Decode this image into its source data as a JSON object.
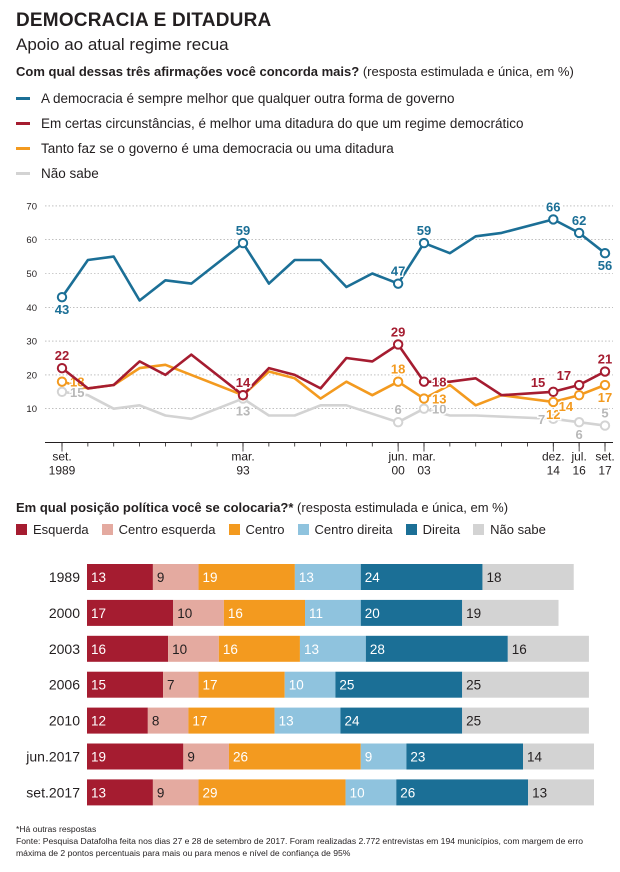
{
  "header": {
    "title": "DEMOCRACIA E DITADURA",
    "subtitle": "Apoio ao atual regime recua"
  },
  "question1": {
    "bold": "Com qual dessas três afirmações você concorda mais?",
    "note": " (resposta estimulada e única, em %)"
  },
  "question2": {
    "bold": "Em qual posição política você se colocaria?*",
    "note": " (resposta estimulada e única, em %)"
  },
  "footnote": {
    "line1": "*Há outras respostas",
    "line2": "Fonte: Pesquisa Datafolha feita nos dias 27 e 28 de setembro de 2017. Foram realizadas 2.772 entrevistas em 194 municípios, com margem de erro máxima de 2 pontos percentuais para mais ou para menos e nível de confiança de 95%"
  },
  "chart_data": [
    {
      "type": "line",
      "ylim": [
        0,
        70
      ],
      "yticks": [
        10,
        20,
        30,
        40,
        50,
        60,
        70
      ],
      "grid": true,
      "x_tick_labels": [
        {
          "index": 0,
          "top": "set.",
          "bottom": "1989"
        },
        {
          "index": 7,
          "top": "mar.",
          "bottom": "93"
        },
        {
          "index": 13,
          "top": "jun.",
          "bottom": "00"
        },
        {
          "index": 14,
          "top": "mar.",
          "bottom": "03"
        },
        {
          "index": 19,
          "top": "dez.",
          "bottom": "14"
        },
        {
          "index": 20,
          "top": "jul.",
          "bottom": "16"
        },
        {
          "index": 21,
          "top": "set.",
          "bottom": "17"
        }
      ],
      "series": [
        {
          "name": "A democracia é sempre melhor que qualquer outra forma de governo",
          "color": "#1b6f96",
          "values": [
            43,
            54,
            55,
            42,
            48,
            47,
            59,
            47,
            54,
            54,
            46,
            50,
            47,
            59,
            56,
            61,
            62,
            66,
            62,
            56
          ],
          "x_index": [
            0,
            1,
            2,
            3,
            4,
            5,
            7,
            8,
            9,
            10,
            11,
            12,
            13,
            14,
            15,
            16,
            17,
            19,
            20,
            21
          ],
          "labels": [
            {
              "i": 0,
              "text": "43",
              "pos": "below"
            },
            {
              "i": 6,
              "text": "59",
              "pos": "above"
            },
            {
              "i": 12,
              "text": "47",
              "pos": "above"
            },
            {
              "i": 13,
              "text": "59",
              "pos": "above"
            },
            {
              "i": 17,
              "text": "66",
              "pos": "above"
            },
            {
              "i": 18,
              "text": "62",
              "pos": "above"
            },
            {
              "i": 19,
              "text": "56",
              "pos": "below"
            }
          ],
          "markers": [
            0,
            6,
            12,
            13,
            17,
            18,
            19
          ]
        },
        {
          "name": "Em certas circunstâncias, é melhor uma ditadura do que um regime democrático",
          "color": "#a51c30",
          "values": [
            22,
            16,
            17,
            24,
            20,
            26,
            14,
            22,
            20,
            16,
            25,
            24,
            29,
            18,
            18,
            19,
            14,
            15,
            17,
            21
          ],
          "x_index": [
            0,
            1,
            2,
            3,
            4,
            5,
            7,
            8,
            9,
            10,
            11,
            12,
            13,
            14,
            15,
            16,
            17,
            19,
            20,
            21
          ],
          "labels": [
            {
              "i": 0,
              "text": "22",
              "pos": "above"
            },
            {
              "i": 6,
              "text": "14",
              "pos": "above"
            },
            {
              "i": 12,
              "text": "29",
              "pos": "above"
            },
            {
              "i": 13,
              "text": "18",
              "pos": "right"
            },
            {
              "i": 17,
              "text": "15",
              "pos": "aboveleft"
            },
            {
              "i": 18,
              "text": "17",
              "pos": "aboveleft"
            },
            {
              "i": 19,
              "text": "21",
              "pos": "above"
            }
          ],
          "markers": [
            0,
            6,
            12,
            13,
            17,
            18,
            19
          ]
        },
        {
          "name": "Tanto faz se o governo é uma democracia ou uma ditadura",
          "color": "#f39a1f",
          "values": [
            18,
            16,
            17,
            22,
            23,
            20,
            14,
            21,
            19,
            13,
            18,
            14,
            18,
            13,
            17,
            11,
            14,
            12,
            14,
            17
          ],
          "x_index": [
            0,
            1,
            2,
            3,
            4,
            5,
            7,
            8,
            9,
            10,
            11,
            12,
            13,
            14,
            15,
            16,
            17,
            19,
            20,
            21
          ],
          "labels": [
            {
              "i": 0,
              "text": "18",
              "pos": "right"
            },
            {
              "i": 6,
              "text": "14",
              "pos": "above"
            },
            {
              "i": 12,
              "text": "18",
              "pos": "above"
            },
            {
              "i": 13,
              "text": "13",
              "pos": "right"
            },
            {
              "i": 17,
              "text": "12",
              "pos": "below"
            },
            {
              "i": 18,
              "text": "14",
              "pos": "belowleft"
            },
            {
              "i": 19,
              "text": "17",
              "pos": "below"
            }
          ],
          "markers": [
            0,
            6,
            12,
            13,
            17,
            18,
            19
          ]
        },
        {
          "name": "Não sabe",
          "color": "#d3d3d3",
          "values": [
            15,
            14,
            10,
            11,
            8,
            7,
            13,
            8,
            8,
            11,
            11,
            6,
            10,
            8,
            8,
            7,
            6,
            5
          ],
          "x_index": [
            0,
            1,
            2,
            3,
            4,
            5,
            7,
            8,
            9,
            10,
            11,
            13,
            14,
            15,
            16,
            19,
            20,
            21
          ],
          "labels": [
            {
              "i": 0,
              "text": "15",
              "pos": "right"
            },
            {
              "i": 6,
              "text": "13",
              "pos": "below"
            },
            {
              "i": 11,
              "text": "6",
              "pos": "above"
            },
            {
              "i": 12,
              "text": "10",
              "pos": "right"
            },
            {
              "i": 15,
              "text": "7",
              "pos": "left"
            },
            {
              "i": 16,
              "text": "6",
              "pos": "below"
            },
            {
              "i": 17,
              "text": "5",
              "pos": "above"
            }
          ],
          "markers": [
            0,
            6,
            11,
            12,
            15,
            16,
            17
          ]
        }
      ]
    },
    {
      "type": "bar",
      "stacked": true,
      "orientation": "horizontal",
      "categories": [
        "1989",
        "2000",
        "2003",
        "2006",
        "2010",
        "jun.2017",
        "set.2017"
      ],
      "series": [
        {
          "name": "Esquerda",
          "color": "#a51c30",
          "values": [
            13,
            17,
            16,
            15,
            12,
            19,
            13
          ],
          "label_color": "#ffffff"
        },
        {
          "name": "Centro esquerda",
          "color": "#e4aaa0",
          "values": [
            9,
            10,
            10,
            7,
            8,
            9,
            9
          ],
          "label_color": "#231f20"
        },
        {
          "name": "Centro",
          "color": "#f39a1f",
          "values": [
            19,
            16,
            16,
            17,
            17,
            26,
            29
          ],
          "label_color": "#ffffff"
        },
        {
          "name": "Centro direita",
          "color": "#8fc3de",
          "values": [
            13,
            11,
            13,
            10,
            13,
            9,
            10
          ],
          "label_color": "#ffffff"
        },
        {
          "name": "Direita",
          "color": "#1b6f96",
          "values": [
            24,
            20,
            28,
            25,
            24,
            23,
            26
          ],
          "label_color": "#ffffff"
        },
        {
          "name": "Não sabe",
          "color": "#d3d3d3",
          "values": [
            18,
            19,
            16,
            25,
            25,
            14,
            13
          ],
          "label_color": "#231f20"
        }
      ]
    }
  ]
}
